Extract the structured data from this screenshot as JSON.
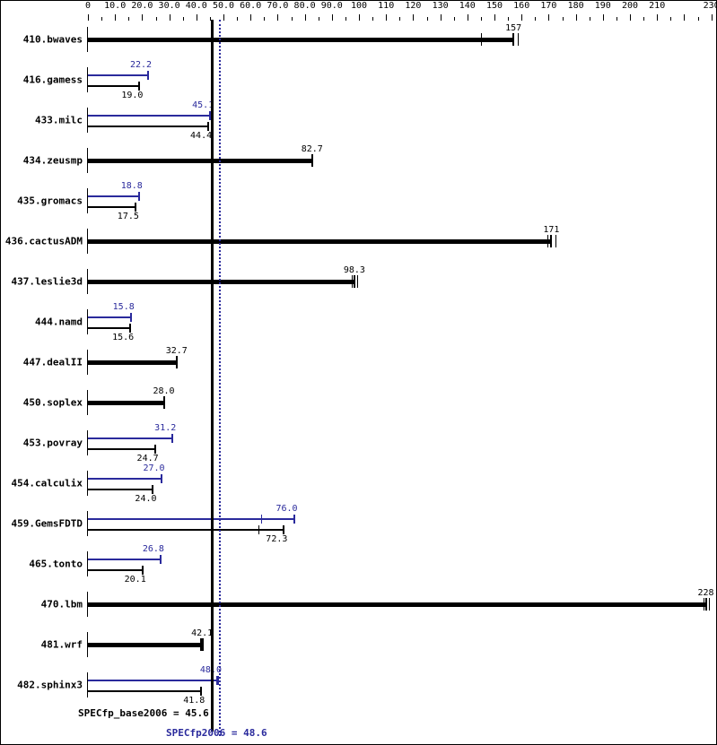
{
  "chart_data": {
    "type": "bar",
    "orientation": "horizontal",
    "title": "",
    "xlabel": "",
    "ylabel": "",
    "xlim": [
      0,
      230
    ],
    "x_axis_position": "top",
    "tick_labels": [
      "0",
      "10.0",
      "20.0",
      "30.0",
      "40.0",
      "50.0",
      "60.0",
      "70.0",
      "80.0",
      "90.0",
      "100",
      "110",
      "120",
      "130",
      "140",
      "150",
      "160",
      "170",
      "180",
      "190",
      "200",
      "210",
      "230"
    ],
    "tick_values": [
      0,
      10,
      20,
      30,
      40,
      50,
      60,
      70,
      80,
      90,
      100,
      110,
      120,
      130,
      140,
      150,
      160,
      170,
      180,
      190,
      200,
      210,
      230
    ],
    "categories": [
      "410.bwaves",
      "416.gamess",
      "433.milc",
      "434.zeusmp",
      "435.gromacs",
      "436.cactusADM",
      "437.leslie3d",
      "444.namd",
      "447.dealII",
      "450.soplex",
      "453.povray",
      "454.calculix",
      "459.GemsFDTD",
      "465.tonto",
      "470.lbm",
      "481.wrf",
      "482.sphinx3"
    ],
    "series": [
      {
        "name": "SPECfp_base2006",
        "color": "#000000",
        "values": [
          157,
          19.0,
          44.4,
          82.7,
          17.5,
          171,
          98.3,
          15.6,
          32.7,
          28.0,
          24.7,
          24.0,
          72.3,
          20.1,
          228,
          42.1,
          41.8
        ]
      },
      {
        "name": "SPECfp2006",
        "color": "#2a2a9c",
        "values": [
          157,
          22.2,
          45.1,
          82.7,
          18.8,
          171,
          98.3,
          15.8,
          32.7,
          28.0,
          31.2,
          27.0,
          76.0,
          26.8,
          228,
          42.1,
          48.0
        ]
      }
    ],
    "reference_lines": [
      {
        "name": "SPECfp_base2006",
        "value": 45.6,
        "style": "solid",
        "color": "#000000"
      },
      {
        "name": "SPECfp2006",
        "value": 48.6,
        "style": "dotted",
        "color": "#2a2a9c"
      }
    ],
    "grid": false,
    "legend": "none"
  },
  "rows": [
    {
      "label": "410.bwaves",
      "same": true,
      "base": 157,
      "base_text": "157",
      "base_runs": [
        145,
        157,
        158.5
      ]
    },
    {
      "label": "416.gamess",
      "same": false,
      "base": 19.0,
      "base_text": "19.0",
      "peak": 22.2,
      "peak_text": "22.2"
    },
    {
      "label": "433.milc",
      "same": false,
      "base": 44.4,
      "base_text": "44.4",
      "peak": 45.1,
      "peak_text": "45.1"
    },
    {
      "label": "434.zeusmp",
      "same": true,
      "base": 82.7,
      "base_text": "82.7"
    },
    {
      "label": "435.gromacs",
      "same": false,
      "base": 17.5,
      "base_text": "17.5",
      "peak": 18.8,
      "peak_text": "18.8"
    },
    {
      "label": "436.cactusADM",
      "same": true,
      "base": 171,
      "base_text": "171",
      "base_runs": [
        169.5,
        171,
        172.5
      ]
    },
    {
      "label": "437.leslie3d",
      "same": true,
      "base": 98.3,
      "base_text": "98.3",
      "base_runs": [
        97.3,
        98.3,
        99.3
      ]
    },
    {
      "label": "444.namd",
      "same": false,
      "base": 15.6,
      "base_text": "15.6",
      "peak": 15.8,
      "peak_text": "15.8"
    },
    {
      "label": "447.dealII",
      "same": true,
      "base": 32.7,
      "base_text": "32.7"
    },
    {
      "label": "450.soplex",
      "same": true,
      "base": 28.0,
      "base_text": "28.0"
    },
    {
      "label": "453.povray",
      "same": false,
      "base": 24.7,
      "base_text": "24.7",
      "peak": 31.2,
      "peak_text": "31.2"
    },
    {
      "label": "454.calculix",
      "same": false,
      "base": 24.0,
      "base_text": "24.0",
      "peak": 27.0,
      "peak_text": "27.0"
    },
    {
      "label": "459.GemsFDTD",
      "same": false,
      "base": 72.3,
      "base_text": "72.3",
      "base_runs": [
        62.8
      ],
      "peak": 76.0,
      "peak_text": "76.0",
      "peak_runs": [
        64.0,
        76.0
      ]
    },
    {
      "label": "465.tonto",
      "same": false,
      "base": 20.1,
      "base_text": "20.1",
      "peak": 26.8,
      "peak_text": "26.8"
    },
    {
      "label": "470.lbm",
      "same": true,
      "base": 228,
      "base_text": "228",
      "base_runs": [
        227,
        228,
        229
      ]
    },
    {
      "label": "481.wrf",
      "same": true,
      "base": 42.1,
      "base_text": "42.1",
      "base_runs": [
        41.4,
        42.4
      ]
    },
    {
      "label": "482.sphinx3",
      "same": false,
      "base": 41.8,
      "base_text": "41.8",
      "peak": 48.0,
      "peak_text": "48.0",
      "peak_runs": [
        47.2
      ]
    }
  ],
  "summary": {
    "base_text": "SPECfp_base2006 = 45.6",
    "peak_text": "SPECfp2006 = 48.6"
  },
  "colors": {
    "base": "#000000",
    "peak": "#2a2a9c"
  }
}
